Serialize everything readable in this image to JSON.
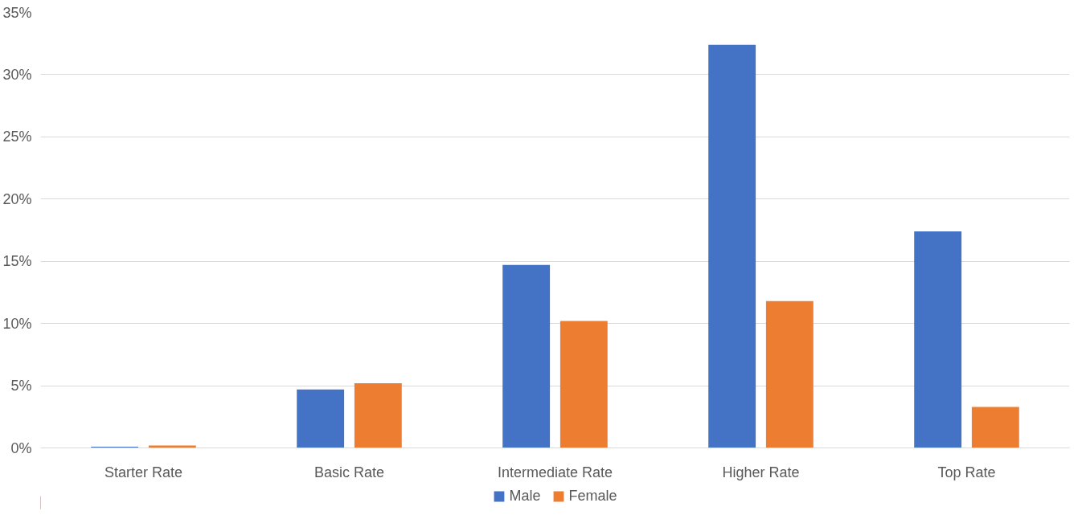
{
  "chart_data": {
    "type": "bar",
    "categories": [
      "Starter Rate",
      "Basic Rate",
      "Intermediate Rate",
      "Higher Rate",
      "Top Rate"
    ],
    "series": [
      {
        "name": "Male",
        "color": "#4472c4",
        "values": [
          0.1,
          4.7,
          14.7,
          32.4,
          17.4
        ]
      },
      {
        "name": "Female",
        "color": "#ed7d31",
        "values": [
          0.2,
          5.2,
          10.2,
          11.8,
          3.3
        ]
      }
    ],
    "ylim": [
      0,
      35
    ],
    "yticks": [
      {
        "value": 0,
        "label": "0%"
      },
      {
        "value": 5,
        "label": "5%"
      },
      {
        "value": 10,
        "label": "10%"
      },
      {
        "value": 15,
        "label": "15%"
      },
      {
        "value": 20,
        "label": "20%"
      },
      {
        "value": 25,
        "label": "25%"
      },
      {
        "value": 30,
        "label": "30%"
      },
      {
        "value": 35,
        "label": "35%"
      }
    ],
    "grid": "y",
    "legend": "bottom"
  }
}
